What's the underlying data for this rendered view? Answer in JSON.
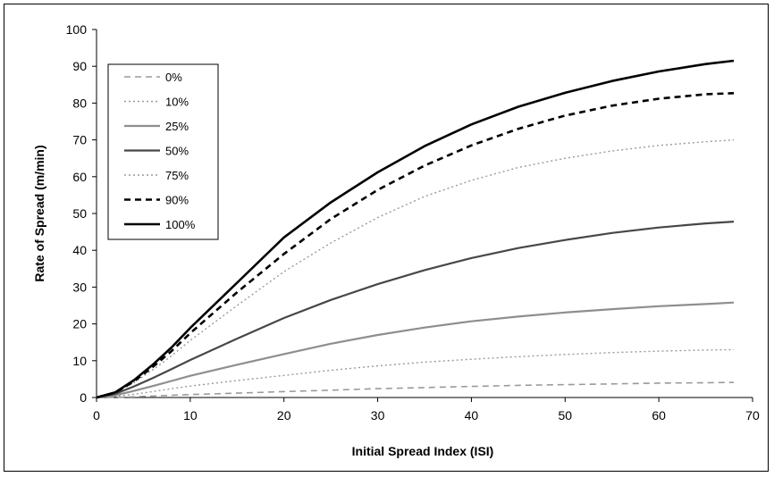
{
  "chart_data": {
    "type": "line",
    "xlabel": "Initial Spread Index (ISI)",
    "ylabel": "Rate of Spread (m/min)",
    "xlim": [
      0,
      70
    ],
    "ylim": [
      0,
      100
    ],
    "x_ticks": [
      "0",
      "10",
      "20",
      "30",
      "40",
      "50",
      "60",
      "70"
    ],
    "y_ticks": [
      "0",
      "10",
      "20",
      "30",
      "40",
      "50",
      "60",
      "70",
      "80",
      "90",
      "100"
    ],
    "grid": false,
    "legend_position": "top-left",
    "x": [
      0,
      2,
      4,
      6,
      8,
      10,
      15,
      20,
      25,
      30,
      35,
      40,
      45,
      50,
      55,
      60,
      65,
      68
    ],
    "series": [
      {
        "name": "0%",
        "style": "dashed",
        "color": "#9a9a9a",
        "width": 1.6,
        "values": [
          0,
          0.05,
          0.2,
          0.4,
          0.6,
          0.8,
          1.2,
          1.6,
          2.0,
          2.4,
          2.7,
          3.0,
          3.3,
          3.5,
          3.7,
          3.9,
          4.0,
          4.1
        ]
      },
      {
        "name": "10%",
        "style": "dotted",
        "color": "#9a9a9a",
        "width": 1.4,
        "values": [
          0,
          0.3,
          0.9,
          1.6,
          2.4,
          3.1,
          4.6,
          6.0,
          7.4,
          8.6,
          9.6,
          10.4,
          11.1,
          11.7,
          12.2,
          12.6,
          12.9,
          13.0
        ]
      },
      {
        "name": "25%",
        "style": "solid",
        "color": "#8e8e8e",
        "width": 2.2,
        "values": [
          0,
          0.6,
          1.8,
          3.1,
          4.5,
          5.9,
          8.9,
          11.8,
          14.6,
          17.0,
          19.0,
          20.7,
          22.0,
          23.1,
          24.0,
          24.8,
          25.4,
          25.8
        ]
      },
      {
        "name": "50%",
        "style": "solid",
        "color": "#474747",
        "width": 2.2,
        "values": [
          0,
          1.0,
          3.0,
          5.3,
          7.7,
          10.2,
          16.0,
          21.6,
          26.5,
          30.8,
          34.6,
          37.9,
          40.6,
          42.8,
          44.7,
          46.2,
          47.3,
          47.8
        ]
      },
      {
        "name": "75%",
        "style": "dotted",
        "color": "#9a9a9a",
        "width": 1.4,
        "values": [
          0,
          1.2,
          4.0,
          7.5,
          11.3,
          15.5,
          25.0,
          34.2,
          42.0,
          48.9,
          54.6,
          59.0,
          62.5,
          65.0,
          67.0,
          68.5,
          69.5,
          70.0
        ]
      },
      {
        "name": "90%",
        "style": "dashed",
        "color": "#000000",
        "width": 2.6,
        "values": [
          0,
          1.3,
          4.4,
          8.3,
          12.6,
          17.5,
          28.6,
          39.0,
          48.5,
          56.4,
          63.0,
          68.5,
          73.0,
          76.6,
          79.3,
          81.2,
          82.4,
          82.7
        ]
      },
      {
        "name": "100%",
        "style": "solid",
        "color": "#000000",
        "width": 2.6,
        "values": [
          0,
          1.4,
          4.7,
          8.9,
          13.6,
          18.9,
          31.2,
          43.5,
          53.0,
          61.2,
          68.3,
          74.2,
          79.0,
          82.8,
          86.0,
          88.6,
          90.6,
          91.5
        ]
      }
    ]
  }
}
